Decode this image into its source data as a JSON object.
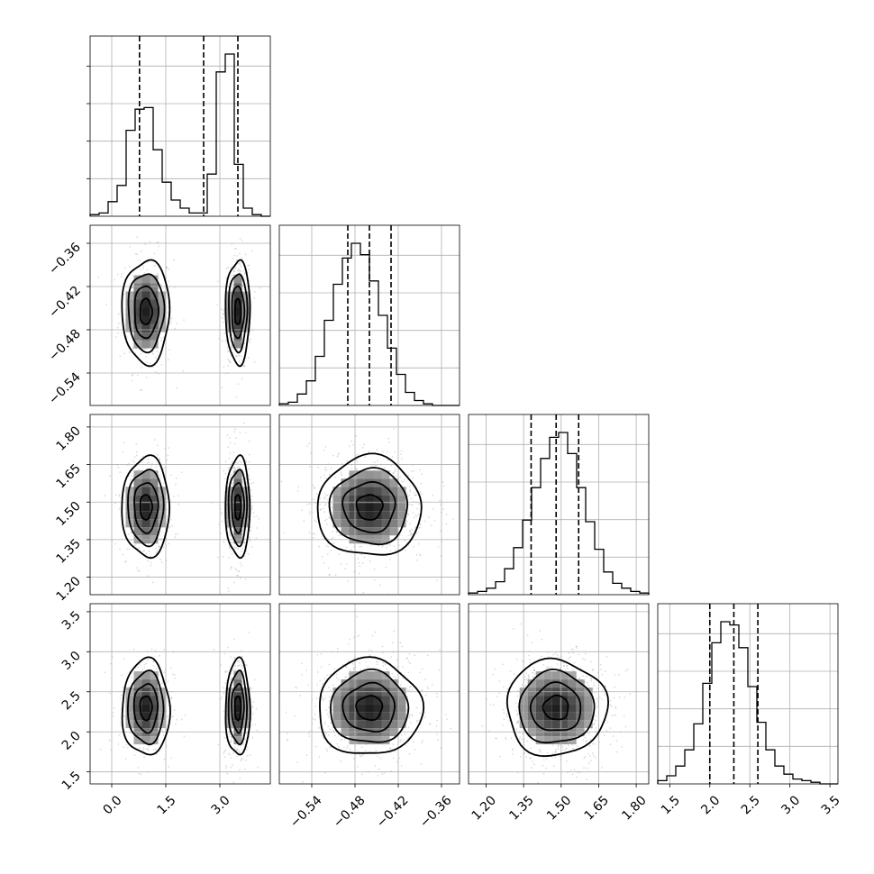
{
  "chart_data": {
    "type": "corner",
    "colors": {
      "ink": "#000000",
      "grid": "#b0b0b0",
      "scatter": "#9a9a9a",
      "background": "#ffffff"
    },
    "grid": true,
    "params": [
      {
        "ticks": [
          0.0,
          1.5,
          3.0
        ],
        "tick_labels": [
          "0.0",
          "1.5",
          "3.0"
        ],
        "range": [
          -0.6,
          4.4
        ]
      },
      {
        "ticks": [
          -0.54,
          -0.48,
          -0.42,
          -0.36
        ],
        "tick_labels": [
          "−0.54",
          "−0.48",
          "−0.42",
          "−0.36"
        ],
        "range": [
          -0.585,
          -0.335
        ]
      },
      {
        "ticks": [
          1.2,
          1.35,
          1.5,
          1.65,
          1.8
        ],
        "tick_labels": [
          "1.20",
          "1.35",
          "1.50",
          "1.65",
          "1.80"
        ],
        "range": [
          1.13,
          1.85
        ]
      },
      {
        "ticks": [
          1.5,
          2.0,
          2.5,
          3.0,
          3.5
        ],
        "tick_labels": [
          "1.5",
          "2.0",
          "2.5",
          "3.0",
          "3.5"
        ],
        "range": [
          1.35,
          3.6
        ]
      }
    ],
    "histograms": [
      {
        "param": 0,
        "edges_range": [
          -0.6,
          4.4
        ],
        "counts": [
          1,
          2,
          9,
          19,
          53,
          66,
          67,
          41,
          21,
          10,
          5,
          2,
          2,
          26,
          89,
          100,
          32,
          5,
          1,
          0
        ],
        "quantiles": [
          0.77,
          2.55,
          3.5
        ]
      },
      {
        "param": 1,
        "edges_range": [
          -0.585,
          -0.335
        ],
        "counts": [
          1,
          2,
          7,
          15,
          30,
          52,
          74,
          90,
          99,
          92,
          76,
          55,
          35,
          19,
          8,
          3,
          1,
          0,
          0,
          0
        ],
        "quantiles": [
          -0.49,
          -0.46,
          -0.43
        ]
      },
      {
        "param": 2,
        "edges_range": [
          1.13,
          1.85
        ],
        "counts": [
          1,
          2,
          4,
          8,
          16,
          29,
          46,
          66,
          84,
          97,
          100,
          87,
          66,
          45,
          28,
          14,
          7,
          4,
          2,
          1
        ],
        "quantiles": [
          1.38,
          1.48,
          1.57
        ]
      },
      {
        "param": 3,
        "edges_range": [
          1.35,
          3.6
        ],
        "counts": [
          2,
          5,
          11,
          21,
          37,
          62,
          87,
          100,
          98,
          84,
          60,
          38,
          21,
          11,
          6,
          3,
          2,
          1,
          0,
          0
        ],
        "quantiles": [
          2.0,
          2.3,
          2.6
        ]
      }
    ],
    "pairs": [
      {
        "x": 0,
        "y": 1,
        "modes": [
          {
            "cx": 0.95,
            "cy": -0.455,
            "sx": 0.33,
            "sy": 0.036,
            "w": 0.45
          },
          {
            "cx": 3.5,
            "cy": -0.455,
            "sx": 0.17,
            "sy": 0.036,
            "w": 0.55
          }
        ]
      },
      {
        "x": 0,
        "y": 2,
        "modes": [
          {
            "cx": 0.95,
            "cy": 1.48,
            "sx": 0.33,
            "sy": 0.1,
            "w": 0.45
          },
          {
            "cx": 3.5,
            "cy": 1.48,
            "sx": 0.17,
            "sy": 0.1,
            "w": 0.55
          }
        ]
      },
      {
        "x": 0,
        "y": 3,
        "modes": [
          {
            "cx": 0.95,
            "cy": 2.3,
            "sx": 0.33,
            "sy": 0.3,
            "w": 0.45
          },
          {
            "cx": 3.5,
            "cy": 2.3,
            "sx": 0.17,
            "sy": 0.3,
            "w": 0.55
          }
        ]
      },
      {
        "x": 1,
        "y": 2,
        "modes": [
          {
            "cx": -0.46,
            "cy": 1.48,
            "sx": 0.036,
            "sy": 0.1,
            "w": 1.0
          }
        ]
      },
      {
        "x": 1,
        "y": 3,
        "modes": [
          {
            "cx": -0.46,
            "cy": 2.3,
            "sx": 0.036,
            "sy": 0.3,
            "w": 1.0
          }
        ]
      },
      {
        "x": 2,
        "y": 3,
        "modes": [
          {
            "cx": 1.48,
            "cy": 2.3,
            "sx": 0.1,
            "sy": 0.3,
            "w": 1.0
          }
        ]
      }
    ]
  }
}
